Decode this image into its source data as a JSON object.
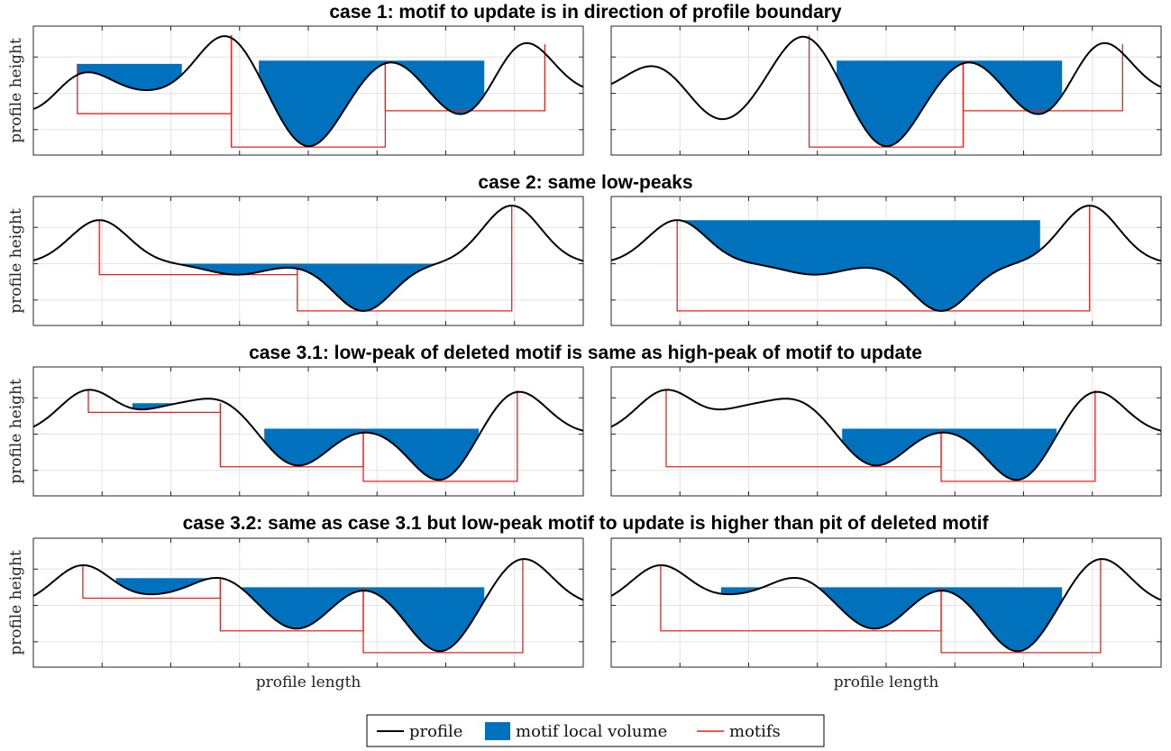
{
  "figure": {
    "ylabel": "profile height",
    "xlabel": "profile length",
    "legend": [
      "profile",
      "motif local volume",
      "motifs"
    ],
    "colors": {
      "profile": "#000000",
      "volume": "#0072BD",
      "motif": "#e8221b",
      "grid": "#e3e3e3"
    }
  },
  "chart_data": [
    {
      "type": "area",
      "title": "case 1: motif to update is in direction of profile boundary",
      "xlabel": "",
      "ylabel": "profile height",
      "grid": true,
      "legend": "bottom-center",
      "panels": [
        {
          "profile_peaks": [
            [
              0.8,
              0.08
            ],
            [
              -0.7,
              0.01
            ],
            [
              1.6,
              0.35
            ],
            [
              -1.5,
              0.5
            ],
            [
              0.9,
              0.65
            ],
            [
              -0.8,
              0.79
            ],
            [
              1.5,
              0.89
            ]
          ],
          "volumes": [
            {
              "level": 0.81,
              "x": [
                0.08,
                0.27
              ]
            },
            {
              "level": 0.9,
              "x": [
                0.41,
                0.65
              ]
            },
            {
              "level": 0.9,
              "x": [
                0.65,
                0.82
              ]
            }
          ],
          "motifs": [
            {
              "y1": 0.81,
              "y2": 1.6,
              "x1": 0.08,
              "x2": 0.36,
              "pit": -0.56
            },
            {
              "y1": 1.6,
              "y2": 0.9,
              "x1": 0.36,
              "x2": 0.64,
              "pit": -1.48
            },
            {
              "y1": 0.9,
              "y2": 1.35,
              "x1": 0.64,
              "x2": 0.93,
              "pit": -0.48
            }
          ]
        },
        {
          "profile_peaks": [
            [
              0.8,
              0.08
            ],
            [
              -0.8,
              0.2
            ],
            [
              1.6,
              0.35
            ],
            [
              -1.5,
              0.5
            ],
            [
              0.9,
              0.65
            ],
            [
              -0.8,
              0.79
            ],
            [
              1.5,
              0.89
            ]
          ],
          "volumes": [
            {
              "level": 0.9,
              "x": [
                0.41,
                0.65
              ]
            },
            {
              "level": 0.9,
              "x": [
                0.65,
                0.82
              ]
            }
          ],
          "motifs": [
            {
              "y1": 1.6,
              "y2": 0.9,
              "x1": 0.36,
              "x2": 0.64,
              "pit": -1.48
            },
            {
              "y1": 0.9,
              "y2": 1.35,
              "x1": 0.64,
              "x2": 0.93,
              "pit": -0.48
            }
          ]
        }
      ]
    },
    {
      "type": "area",
      "title": "case 2: same low-peaks",
      "xlabel": "",
      "ylabel": "profile height",
      "grid": true,
      "panels": [
        {
          "profile_peaks": [
            [
              1.2,
              0.12
            ],
            [
              -0.3,
              0.37
            ],
            [
              0.0,
              0.48
            ],
            [
              -1.3,
              0.6
            ],
            [
              1.6,
              0.87
            ]
          ],
          "volumes": [
            {
              "level": 0.0,
              "x": [
                0.27,
                0.48
              ]
            },
            {
              "level": 0.0,
              "x": [
                0.48,
                0.74
              ]
            }
          ],
          "motifs": [
            {
              "y1": 1.2,
              "y2": 0.0,
              "x1": 0.12,
              "x2": 0.48,
              "pit": -0.3
            },
            {
              "y1": 0.0,
              "y2": 1.6,
              "x1": 0.48,
              "x2": 0.87,
              "pit": -1.3
            }
          ]
        },
        {
          "profile_peaks": [
            [
              1.2,
              0.12
            ],
            [
              -0.3,
              0.37
            ],
            [
              0.0,
              0.48
            ],
            [
              -1.3,
              0.6
            ],
            [
              1.6,
              0.87
            ]
          ],
          "volumes": [
            {
              "level": 1.2,
              "x": [
                0.12,
                0.78
              ]
            }
          ],
          "motifs": [
            {
              "y1": 1.2,
              "y2": 1.6,
              "x1": 0.12,
              "x2": 0.87,
              "pit": -1.3
            }
          ]
        }
      ]
    },
    {
      "type": "area",
      "title": "case 3.1: low-peak of deleted motif is same as high-peak of motif to update",
      "xlabel": "",
      "ylabel": "profile height",
      "grid": true,
      "panels": [
        {
          "profile_peaks": [
            [
              1.2,
              0.1
            ],
            [
              0.6,
              0.24
            ],
            [
              0.85,
              0.34
            ],
            [
              -0.9,
              0.48
            ],
            [
              0.15,
              0.6
            ],
            [
              -1.3,
              0.74
            ],
            [
              1.2,
              0.88
            ]
          ],
          "volumes": [
            {
              "level": 0.85,
              "x": [
                0.18,
                0.34
              ]
            },
            {
              "level": 0.15,
              "x": [
                0.42,
                0.6
              ]
            },
            {
              "level": 0.15,
              "x": [
                0.6,
                0.81
              ]
            }
          ],
          "motifs": [
            {
              "y1": 1.2,
              "y2": 0.85,
              "x1": 0.1,
              "x2": 0.34,
              "pit": 0.6
            },
            {
              "y1": 0.85,
              "y2": 0.15,
              "x1": 0.34,
              "x2": 0.6,
              "pit": -0.9
            },
            {
              "y1": 0.15,
              "y2": 1.2,
              "x1": 0.6,
              "x2": 0.88,
              "pit": -1.3
            }
          ]
        },
        {
          "profile_peaks": [
            [
              1.2,
              0.1
            ],
            [
              0.6,
              0.24
            ],
            [
              0.85,
              0.34
            ],
            [
              -0.9,
              0.48
            ],
            [
              0.15,
              0.6
            ],
            [
              -1.3,
              0.74
            ],
            [
              1.2,
              0.88
            ]
          ],
          "volumes": [
            {
              "level": 0.15,
              "x": [
                0.42,
                0.6
              ]
            },
            {
              "level": 0.15,
              "x": [
                0.6,
                0.81
              ]
            }
          ],
          "motifs": [
            {
              "y1": 1.2,
              "y2": 0.15,
              "x1": 0.1,
              "x2": 0.6,
              "pit": -0.9
            },
            {
              "y1": 0.15,
              "y2": 1.2,
              "x1": 0.6,
              "x2": 0.88,
              "pit": -1.3
            }
          ]
        }
      ]
    },
    {
      "type": "area",
      "title": "case 3.2: same as case 3.1 but low-peak motif to update is higher than pit of deleted motif",
      "xlabel": "profile length",
      "ylabel": "profile height",
      "grid": true,
      "panels": [
        {
          "profile_peaks": [
            [
              1.1,
              0.09
            ],
            [
              0.2,
              0.23
            ],
            [
              0.75,
              0.34
            ],
            [
              -0.7,
              0.48
            ],
            [
              0.5,
              0.6
            ],
            [
              -1.3,
              0.74
            ],
            [
              1.3,
              0.89
            ]
          ],
          "volumes": [
            {
              "level": 0.75,
              "x": [
                0.15,
                0.34
              ]
            },
            {
              "level": 0.5,
              "x": [
                0.38,
                0.6
              ]
            },
            {
              "level": 0.5,
              "x": [
                0.6,
                0.82
              ]
            }
          ],
          "motifs": [
            {
              "y1": 1.1,
              "y2": 0.75,
              "x1": 0.09,
              "x2": 0.34,
              "pit": 0.2
            },
            {
              "y1": 0.75,
              "y2": 0.5,
              "x1": 0.34,
              "x2": 0.6,
              "pit": -0.7
            },
            {
              "y1": 0.5,
              "y2": 1.3,
              "x1": 0.6,
              "x2": 0.89,
              "pit": -1.3
            }
          ]
        },
        {
          "profile_peaks": [
            [
              1.1,
              0.09
            ],
            [
              0.2,
              0.23
            ],
            [
              0.75,
              0.34
            ],
            [
              -0.7,
              0.48
            ],
            [
              0.5,
              0.6
            ],
            [
              -1.3,
              0.74
            ],
            [
              1.3,
              0.89
            ]
          ],
          "volumes": [
            {
              "level": 0.5,
              "x": [
                0.2,
                0.6
              ]
            },
            {
              "level": 0.5,
              "x": [
                0.6,
                0.82
              ]
            }
          ],
          "motifs": [
            {
              "y1": 1.1,
              "y2": 0.5,
              "x1": 0.09,
              "x2": 0.6,
              "pit": -0.7
            },
            {
              "y1": 0.5,
              "y2": 1.3,
              "x1": 0.6,
              "x2": 0.89,
              "pit": -1.3
            }
          ]
        }
      ]
    }
  ]
}
